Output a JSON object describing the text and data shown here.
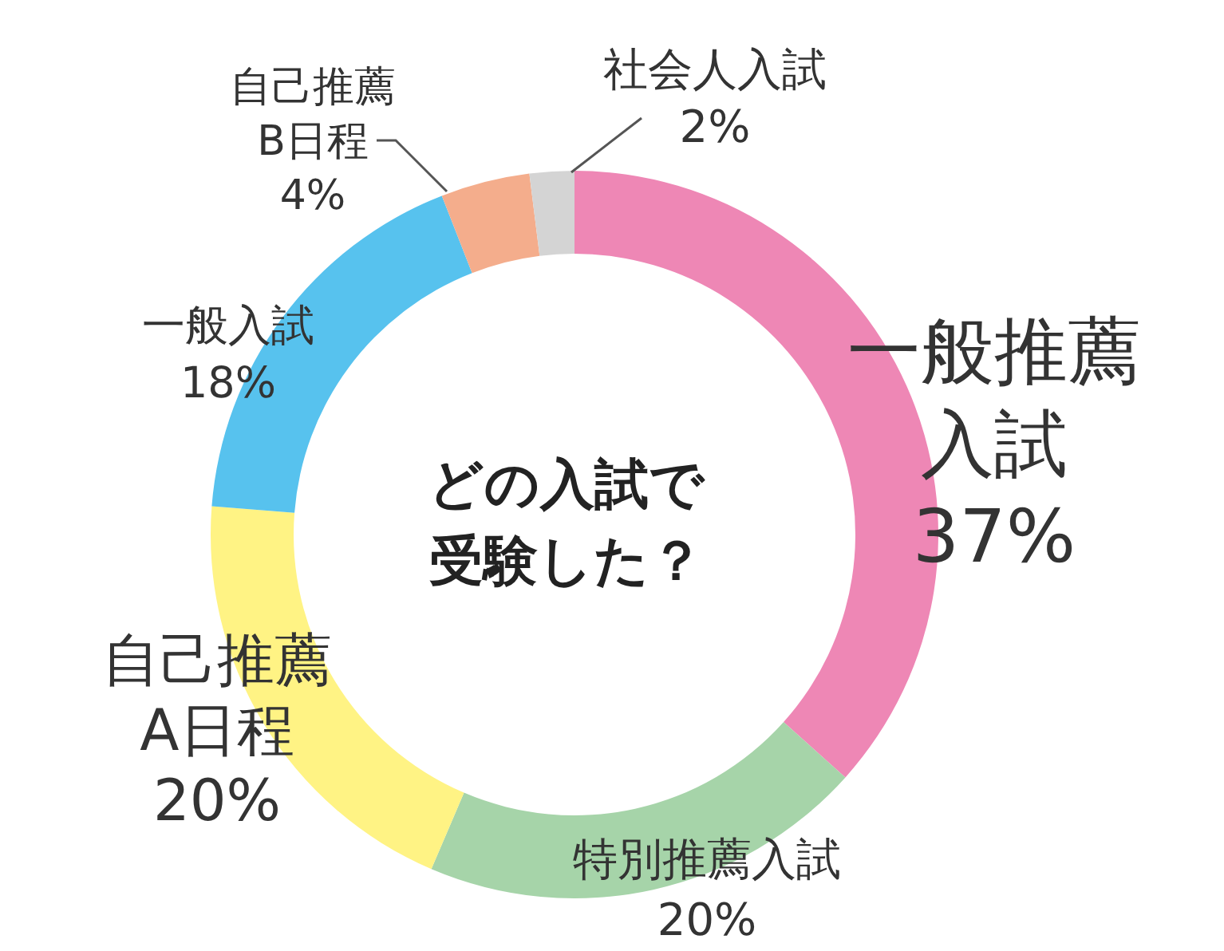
{
  "chart_data": {
    "type": "donut",
    "title": "どの入試で受験した？",
    "categories": [
      "一般推薦入試",
      "特別推薦入試",
      "自己推薦A日程",
      "一般入試",
      "自己推薦B日程",
      "社会人入試"
    ],
    "values": [
      37,
      20,
      20,
      18,
      4,
      2
    ],
    "value_labels": [
      "37%",
      "20%",
      "20%",
      "18%",
      "4%",
      "2%"
    ],
    "colors": [
      "#ee87b5",
      "#a6d4a9",
      "#fff384",
      "#57c2ee",
      "#f4ad8c",
      "#d4d4d4"
    ],
    "legend": false
  }
}
